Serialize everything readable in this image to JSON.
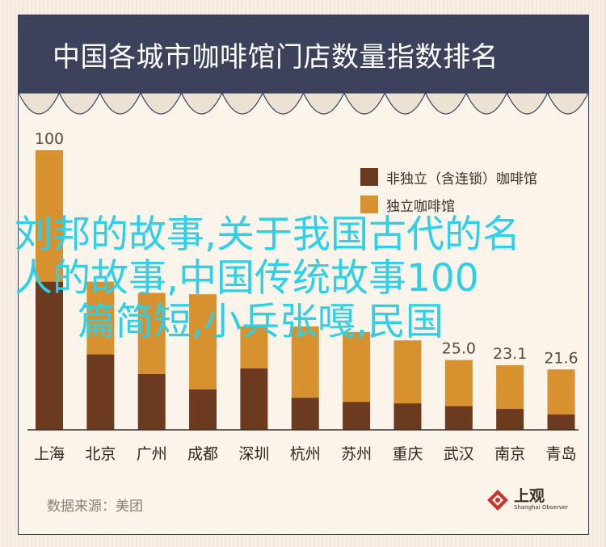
{
  "title": "中国各城市咖啡馆门店数量指数排名",
  "legend": [
    {
      "label": "非独立（含连锁）咖啡馆",
      "color": "#6b3a1f"
    },
    {
      "label": "独立咖啡馆",
      "color": "#d8912f"
    }
  ],
  "source": "数据来源：美团",
  "logo": {
    "cn": "上观",
    "en": "Shanghai Observer"
  },
  "watermark": [
    "刘邦的故事,关于我国古代的名",
    "人的故事,中国传统故事100",
    "篇简短,小兵张嘎,民国"
  ],
  "chart_data": {
    "type": "bar",
    "stacked": true,
    "categories": [
      "上海",
      "北京",
      "广州",
      "成都",
      "深圳",
      "杭州",
      "苏州",
      "重庆",
      "武汉",
      "南京",
      "青岛"
    ],
    "series": [
      {
        "name": "非独立（含连锁）咖啡馆",
        "values": [
          53,
          27,
          20,
          14.5,
          22,
          11.5,
          10,
          9.5,
          8.5,
          7.5,
          5.5
        ]
      },
      {
        "name": "独立咖啡馆",
        "values": [
          47,
          26,
          29,
          34,
          15,
          25.5,
          25,
          22.5,
          16.5,
          15.6,
          16.1
        ]
      }
    ],
    "totals": [
      100,
      53,
      49,
      48.5,
      37,
      37,
      35,
      32,
      25.0,
      23.1,
      21.6
    ],
    "total_labels": [
      "100",
      "",
      "",
      "",
      "",
      "",
      "",
      "",
      "25.0",
      "23.1",
      "21.6"
    ],
    "ylim": [
      0,
      100
    ]
  }
}
